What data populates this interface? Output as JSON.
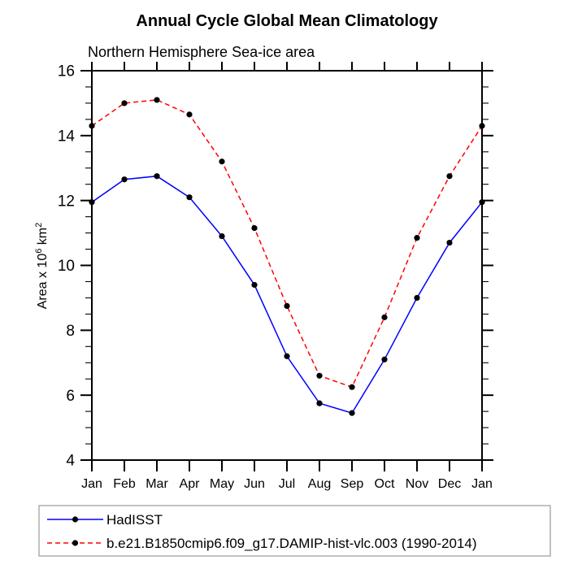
{
  "chart_data": {
    "type": "line",
    "title": "Annual Cycle Global Mean Climatology",
    "subtitle": "Northern Hemisphere Sea-ice area",
    "ylabel": "Area x 10⁶ km²",
    "ylabel_parts": [
      {
        "t": "Area x 10"
      },
      {
        "t": "6",
        "sup": true
      },
      {
        "t": " km"
      },
      {
        "t": "2",
        "sup": true
      }
    ],
    "categories": [
      "Jan",
      "Feb",
      "Mar",
      "Apr",
      "May",
      "Jun",
      "Jul",
      "Aug",
      "Sep",
      "Oct",
      "Nov",
      "Dec",
      "Jan"
    ],
    "ylim": [
      4,
      16
    ],
    "y_major_ticks": [
      4,
      6,
      8,
      10,
      12,
      14,
      16
    ],
    "y_minor_step": 0.5,
    "grid": false,
    "legend_position": "bottom-box",
    "frame_color": "#000000",
    "legend_border_color": "#999999",
    "marker_color": "#000000",
    "series": [
      {
        "name": "HadISST",
        "color": "#0000ff",
        "style": "solid",
        "marker": "circle",
        "values": [
          11.95,
          12.65,
          12.75,
          12.1,
          10.9,
          9.4,
          7.2,
          5.75,
          5.45,
          7.1,
          9.0,
          10.7,
          11.95
        ]
      },
      {
        "name": "b.e21.B1850cmip6.f09_g17.DAMIP-hist-vlc.003 (1990-2014)",
        "color": "#ff0000",
        "style": "dashed",
        "marker": "circle",
        "values": [
          14.3,
          15.0,
          15.1,
          14.65,
          13.2,
          11.15,
          8.75,
          6.6,
          6.25,
          8.4,
          10.85,
          12.75,
          14.3
        ]
      }
    ]
  }
}
